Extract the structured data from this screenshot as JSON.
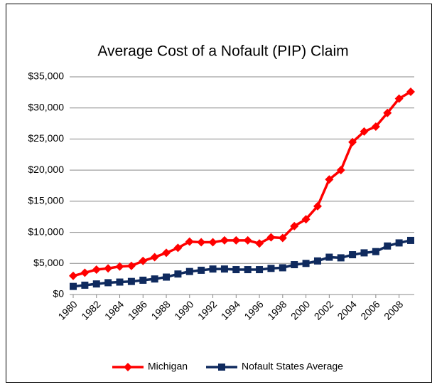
{
  "chart_data": {
    "type": "line",
    "title": "Average Cost of a Nofault (PIP) Claim",
    "x": [
      1980,
      1981,
      1982,
      1983,
      1984,
      1985,
      1986,
      1987,
      1988,
      1989,
      1990,
      1991,
      1992,
      1993,
      1994,
      1995,
      1996,
      1997,
      1998,
      1999,
      2000,
      2001,
      2002,
      2003,
      2004,
      2005,
      2006,
      2007,
      2008,
      2009
    ],
    "xlim": [
      1980,
      2009
    ],
    "xticks": [
      1980,
      1982,
      1984,
      1986,
      1988,
      1990,
      1992,
      1994,
      1996,
      1998,
      2000,
      2002,
      2004,
      2006,
      2008
    ],
    "ylim": [
      0,
      35000
    ],
    "yticks": [
      {
        "value": 0,
        "label": "$0"
      },
      {
        "value": 5000,
        "label": "$5,000"
      },
      {
        "value": 10000,
        "label": "$10,000"
      },
      {
        "value": 15000,
        "label": "$15,000"
      },
      {
        "value": 20000,
        "label": "$20,000"
      },
      {
        "value": 25000,
        "label": "$25,000"
      },
      {
        "value": 30000,
        "label": "$30,000"
      },
      {
        "value": 35000,
        "label": "$35,000"
      }
    ],
    "grid": true,
    "legend": "bottom",
    "series": [
      {
        "name": "Michigan",
        "color": "#ff0000",
        "marker": "diamond",
        "values": [
          3000,
          3500,
          4000,
          4200,
          4500,
          4600,
          5400,
          6000,
          6700,
          7500,
          8500,
          8400,
          8400,
          8700,
          8700,
          8700,
          8200,
          9200,
          9100,
          11000,
          12100,
          14200,
          18500,
          20000,
          24500,
          26200,
          27000,
          29200,
          31500,
          32600
        ]
      },
      {
        "name": "Nofault States Average",
        "color": "#0f2a5e",
        "marker": "square",
        "values": [
          1300,
          1500,
          1700,
          1900,
          2000,
          2100,
          2300,
          2500,
          2800,
          3300,
          3700,
          3900,
          4100,
          4100,
          4000,
          4000,
          4000,
          4200,
          4300,
          4800,
          5000,
          5400,
          6000,
          5900,
          6400,
          6700,
          6900,
          7800,
          8300,
          8700
        ]
      }
    ]
  }
}
